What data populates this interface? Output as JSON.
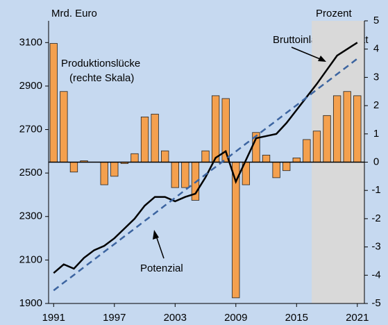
{
  "chart_data": {
    "type": "bar_line",
    "y_label": "Mrd. Euro",
    "y2_label": "Prozent",
    "x": [
      1991,
      1992,
      1993,
      1994,
      1995,
      1996,
      1997,
      1998,
      1999,
      2000,
      2001,
      2002,
      2003,
      2004,
      2005,
      2006,
      2007,
      2008,
      2009,
      2010,
      2011,
      2012,
      2013,
      2014,
      2015,
      2016,
      2017,
      2018,
      2019,
      2020,
      2021
    ],
    "xlim": [
      1990.5,
      2021.7
    ],
    "xticks": [
      1991,
      1997,
      2003,
      2009,
      2015,
      2021
    ],
    "ylim": [
      1900,
      3200
    ],
    "yticks": [
      1900,
      2100,
      2300,
      2500,
      2700,
      2900,
      3100
    ],
    "y2lim": [
      -5,
      5
    ],
    "y2ticks": [
      -5,
      -4,
      -3,
      -2,
      -1,
      0,
      1,
      2,
      3,
      4,
      5
    ],
    "shaded_xrange": [
      2016.5,
      2021.7
    ],
    "series": [
      {
        "name": "Produktionslücke",
        "annotation": "(rechte Skala)",
        "kind": "bar",
        "axis": "y2",
        "color": "#f4a04e",
        "values": [
          4.2,
          2.5,
          -0.35,
          0.05,
          0,
          -0.8,
          -0.5,
          -0.05,
          0.3,
          1.6,
          1.7,
          0.4,
          -0.9,
          -0.9,
          -1.35,
          0.4,
          2.35,
          2.25,
          -4.8,
          -0.8,
          1.05,
          0.25,
          -0.55,
          -0.3,
          0.15,
          0.8,
          1.1,
          1.65,
          2.35,
          2.5,
          2.35
        ]
      },
      {
        "name": "Bruttoinlandsprodukt",
        "kind": "line",
        "color": "#000000",
        "values": [
          2040,
          2080,
          2060,
          2110,
          2145,
          2165,
          2200,
          2245,
          2290,
          2350,
          2390,
          2390,
          2370,
          2390,
          2405,
          2480,
          2570,
          2600,
          2460,
          2560,
          2660,
          2670,
          2680,
          2730,
          2790,
          2850,
          2910,
          2975,
          3040,
          3070,
          3100
        ]
      },
      {
        "name": "Potenzial",
        "kind": "dashed",
        "color": "#3c64a0",
        "values": [
          1960,
          1996,
          2031,
          2067,
          2102,
          2138,
          2173,
          2209,
          2244,
          2280,
          2315,
          2351,
          2386,
          2422,
          2457,
          2493,
          2528,
          2564,
          2599,
          2635,
          2670,
          2706,
          2741,
          2777,
          2812,
          2848,
          2884,
          2919,
          2955,
          2990,
          3026
        ]
      }
    ]
  }
}
